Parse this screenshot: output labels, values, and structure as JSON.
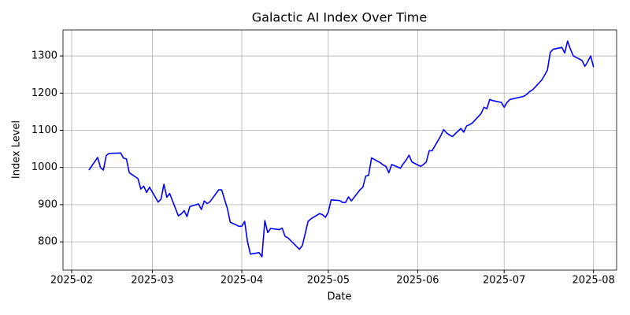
{
  "chart_data": {
    "type": "line",
    "title": "Galactic AI Index Over Time",
    "x_label": "Date",
    "y_label": "Index Level",
    "x": [
      "2025-02-07",
      "2025-02-10",
      "2025-02-11",
      "2025-02-12",
      "2025-02-13",
      "2025-02-14",
      "2025-02-18",
      "2025-02-19",
      "2025-02-20",
      "2025-02-21",
      "2025-02-24",
      "2025-02-25",
      "2025-02-26",
      "2025-02-27",
      "2025-02-28",
      "2025-03-03",
      "2025-03-04",
      "2025-03-05",
      "2025-03-06",
      "2025-03-07",
      "2025-03-10",
      "2025-03-11",
      "2025-03-12",
      "2025-03-13",
      "2025-03-14",
      "2025-03-17",
      "2025-03-18",
      "2025-03-19",
      "2025-03-20",
      "2025-03-21",
      "2025-03-24",
      "2025-03-25",
      "2025-03-27",
      "2025-03-28",
      "2025-03-31",
      "2025-04-01",
      "2025-04-02",
      "2025-04-03",
      "2025-04-04",
      "2025-04-07",
      "2025-04-08",
      "2025-04-09",
      "2025-04-10",
      "2025-04-11",
      "2025-04-14",
      "2025-04-15",
      "2025-04-16",
      "2025-04-17",
      "2025-04-21",
      "2025-04-22",
      "2025-04-23",
      "2025-04-24",
      "2025-04-25",
      "2025-04-28",
      "2025-04-29",
      "2025-04-30",
      "2025-05-01",
      "2025-05-02",
      "2025-05-05",
      "2025-05-06",
      "2025-05-07",
      "2025-05-08",
      "2025-05-09",
      "2025-05-12",
      "2025-05-13",
      "2025-05-14",
      "2025-05-15",
      "2025-05-16",
      "2025-05-19",
      "2025-05-20",
      "2025-05-21",
      "2025-05-22",
      "2025-05-23",
      "2025-05-26",
      "2025-05-27",
      "2025-05-28",
      "2025-05-29",
      "2025-05-30",
      "2025-06-02",
      "2025-06-03",
      "2025-06-04",
      "2025-06-05",
      "2025-06-06",
      "2025-06-09",
      "2025-06-10",
      "2025-06-11",
      "2025-06-12",
      "2025-06-13",
      "2025-06-16",
      "2025-06-17",
      "2025-06-18",
      "2025-06-19",
      "2025-06-20",
      "2025-06-23",
      "2025-06-24",
      "2025-06-25",
      "2025-06-26",
      "2025-06-27",
      "2025-06-30",
      "2025-07-01",
      "2025-07-02",
      "2025-07-03",
      "2025-07-07",
      "2025-07-08",
      "2025-07-09",
      "2025-07-10",
      "2025-07-11",
      "2025-07-14",
      "2025-07-15",
      "2025-07-16",
      "2025-07-17",
      "2025-07-18",
      "2025-07-21",
      "2025-07-22",
      "2025-07-23",
      "2025-07-24",
      "2025-07-25",
      "2025-07-28",
      "2025-07-29",
      "2025-07-30",
      "2025-07-31",
      "2025-08-01"
    ],
    "values": [
      993,
      1027,
      1000,
      993,
      1032,
      1038,
      1039,
      1025,
      1023,
      986,
      970,
      942,
      950,
      933,
      947,
      907,
      915,
      955,
      920,
      930,
      870,
      875,
      884,
      868,
      895,
      902,
      887,
      910,
      903,
      908,
      940,
      940,
      890,
      853,
      842,
      842,
      855,
      800,
      767,
      771,
      760,
      857,
      825,
      836,
      833,
      837,
      815,
      811,
      780,
      790,
      822,
      855,
      862,
      876,
      873,
      866,
      880,
      913,
      911,
      906,
      906,
      921,
      910,
      940,
      947,
      977,
      979,
      1026,
      1013,
      1007,
      1003,
      986,
      1008,
      998,
      1010,
      1020,
      1033,
      1015,
      1003,
      1008,
      1015,
      1045,
      1045,
      1085,
      1102,
      1093,
      1088,
      1083,
      1105,
      1095,
      1112,
      1115,
      1120,
      1145,
      1162,
      1158,
      1183,
      1180,
      1175,
      1162,
      1175,
      1183,
      1190,
      1192,
      1198,
      1205,
      1210,
      1235,
      1248,
      1262,
      1310,
      1318,
      1323,
      1308,
      1340,
      1318,
      1300,
      1288,
      1272,
      1285,
      1300,
      1270
    ],
    "color": "#0000ff",
    "xlim": [
      "2025-01-29",
      "2025-08-09"
    ],
    "xticks": [
      {
        "value": "2025-02-01",
        "label": "2025-02"
      },
      {
        "value": "2025-03-01",
        "label": "2025-03"
      },
      {
        "value": "2025-04-01",
        "label": "2025-04"
      },
      {
        "value": "2025-05-01",
        "label": "2025-05"
      },
      {
        "value": "2025-06-01",
        "label": "2025-06"
      },
      {
        "value": "2025-07-01",
        "label": "2025-07"
      },
      {
        "value": "2025-08-01",
        "label": "2025-08"
      }
    ],
    "ylim": [
      724,
      1370
    ],
    "yticks": [
      800,
      900,
      1000,
      1100,
      1200,
      1300
    ],
    "grid": true
  }
}
